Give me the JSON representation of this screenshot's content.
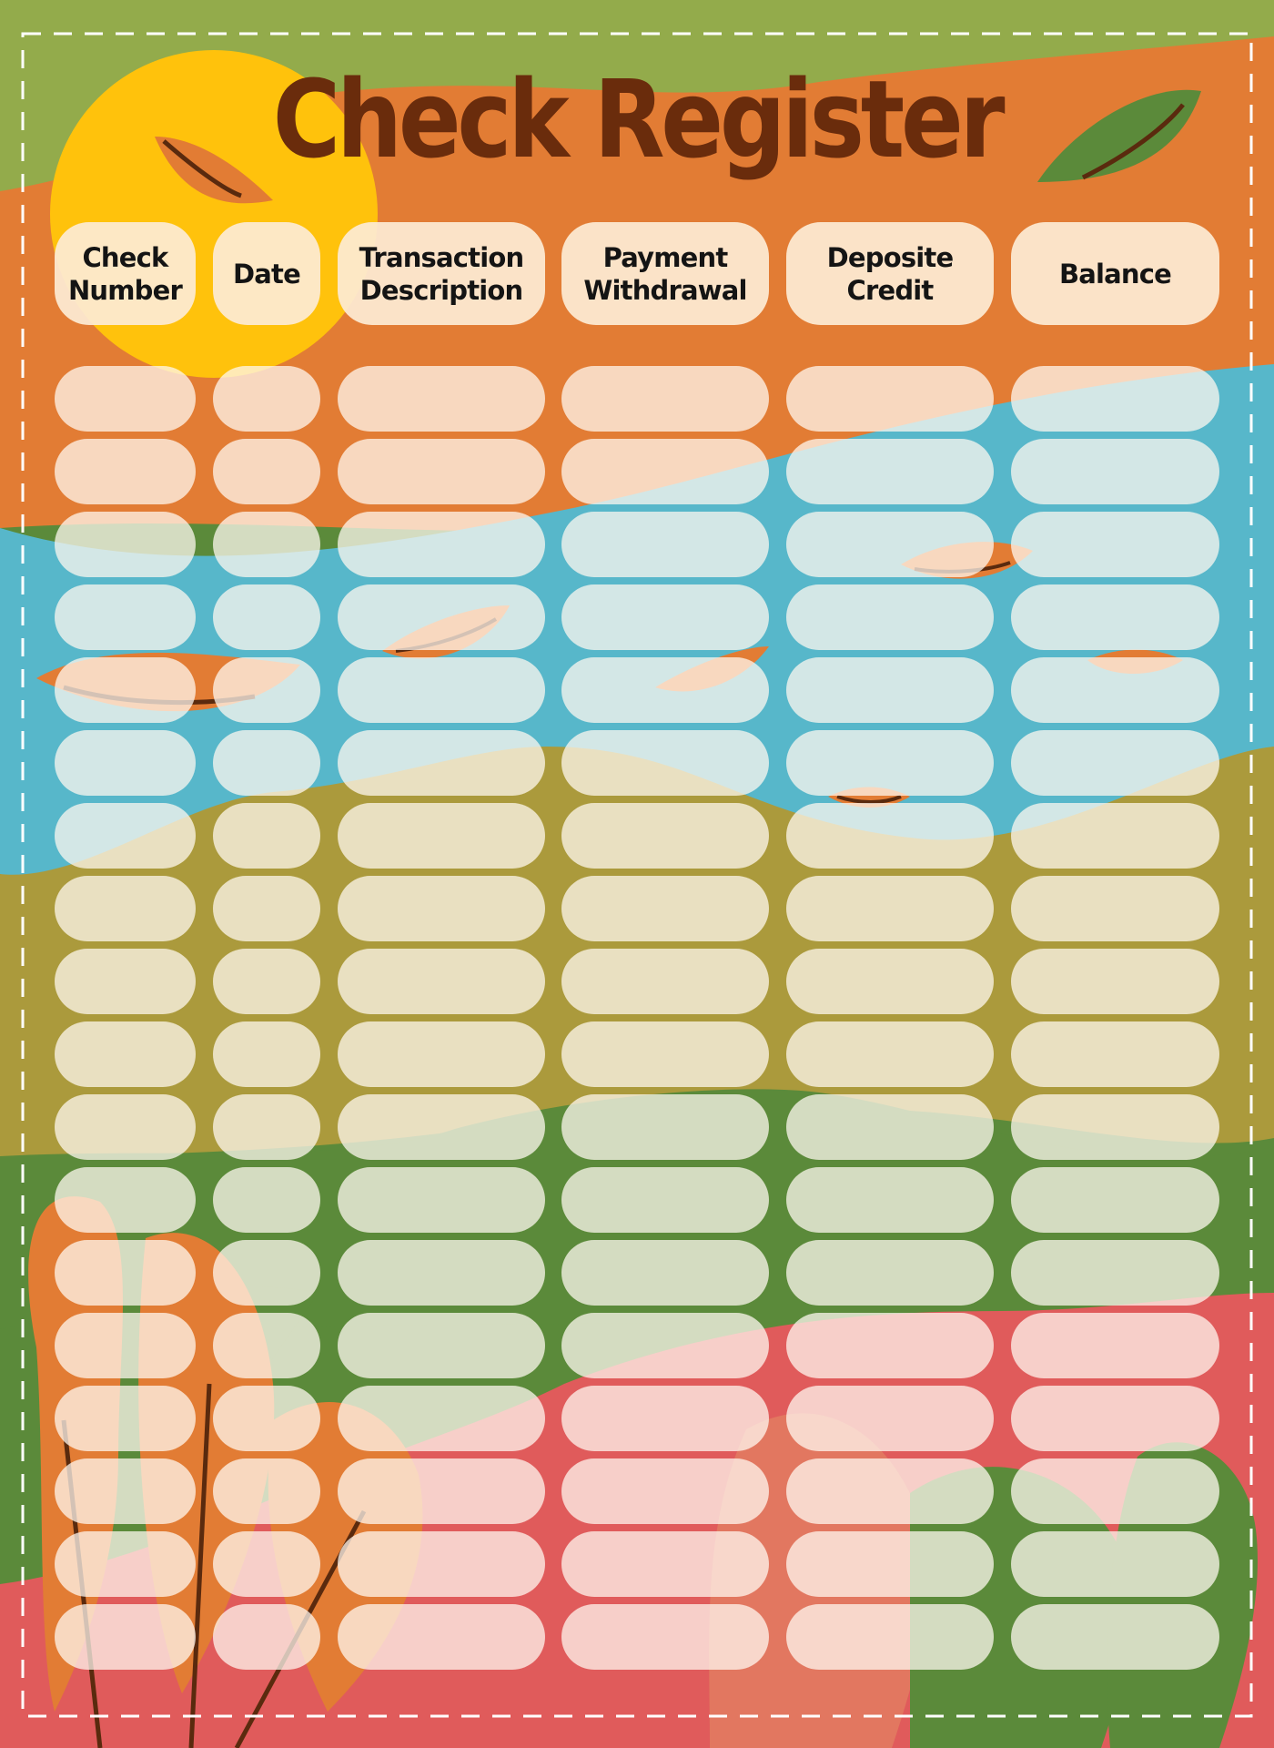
{
  "title": "Check Register",
  "columns": [
    "Check\nNumber",
    "Date",
    "Transaction\nDescription",
    "Payment\nWithdrawal",
    "Deposite\nCredit",
    "Balance"
  ],
  "entries": [
    [
      "",
      "",
      "",
      "",
      "",
      ""
    ],
    [
      "",
      "",
      "",
      "",
      "",
      ""
    ],
    [
      "",
      "",
      "",
      "",
      "",
      ""
    ],
    [
      "",
      "",
      "",
      "",
      "",
      ""
    ],
    [
      "",
      "",
      "",
      "",
      "",
      ""
    ],
    [
      "",
      "",
      "",
      "",
      "",
      ""
    ],
    [
      "",
      "",
      "",
      "",
      "",
      ""
    ],
    [
      "",
      "",
      "",
      "",
      "",
      ""
    ],
    [
      "",
      "",
      "",
      "",
      "",
      ""
    ],
    [
      "",
      "",
      "",
      "",
      "",
      ""
    ],
    [
      "",
      "",
      "",
      "",
      "",
      ""
    ],
    [
      "",
      "",
      "",
      "",
      "",
      ""
    ],
    [
      "",
      "",
      "",
      "",
      "",
      ""
    ],
    [
      "",
      "",
      "",
      "",
      "",
      ""
    ],
    [
      "",
      "",
      "",
      "",
      "",
      ""
    ],
    [
      "",
      "",
      "",
      "",
      "",
      ""
    ],
    [
      "",
      "",
      "",
      "",
      "",
      ""
    ],
    [
      "",
      "",
      "",
      "",
      "",
      ""
    ]
  ],
  "colors": {
    "green": "#93ab4b",
    "orange": "#e27c34",
    "yellow": "#ffc20c",
    "blue": "#57b7ca",
    "olive": "#ab9a3c",
    "dark_green": "#5b8a3a",
    "red": "#e05b5b",
    "title": "#6a2c0c",
    "header_cell": "#fdebd4"
  }
}
